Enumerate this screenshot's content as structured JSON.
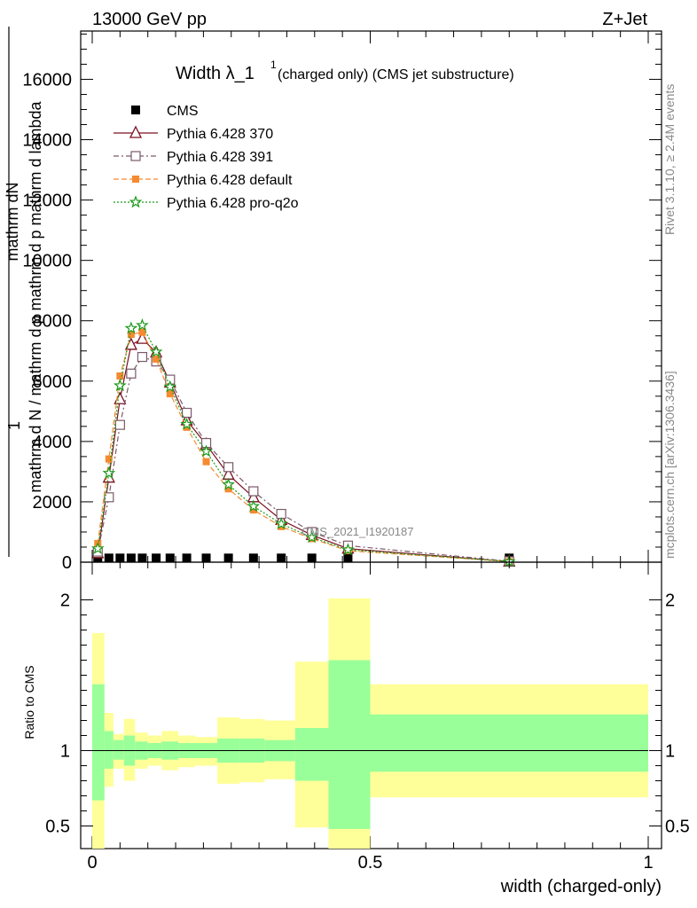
{
  "header": {
    "left": "13000 GeV pp",
    "right": "Z+Jet",
    "title": "Width λ_1",
    "title_sup": "1",
    "title_suffix": "(charged only) (CMS jet substructure)",
    "ref_label": "CMS_2021_I1920187"
  },
  "side_labels": {
    "rivet": "Rivet 3.1.10, ≥ 2.4M events",
    "mcplots": "mcplots.cern.ch [arXiv:1306.3436]"
  },
  "colors": {
    "cms": "#000000",
    "p370": "#7b1020",
    "p391": "#7a5a6a",
    "pdefault": "#f58a30",
    "pq2o": "#1a9a1a",
    "band_stat": "#99ff99",
    "band_tot": "#ffff99"
  },
  "chart_data": [
    {
      "type": "line",
      "ylabel_top": "mathrm dN",
      "ylabel_mid": "1",
      "ylabel_bottom": "mathrm d N / mathrm d p mathrm d p mathrm d lambda",
      "ylim": [
        0,
        17600
      ],
      "xlim": [
        -0.02,
        1.02
      ],
      "yticks": [
        0,
        2000,
        4000,
        6000,
        8000,
        10000,
        12000,
        14000,
        16000
      ],
      "x": [
        0.01,
        0.03,
        0.05,
        0.07,
        0.09,
        0.115,
        0.14,
        0.17,
        0.205,
        0.245,
        0.29,
        0.34,
        0.395,
        0.46,
        0.75
      ],
      "series": [
        {
          "name": "CMS",
          "key": "cms",
          "marker": "square",
          "values": [
            20,
            20,
            20,
            20,
            20,
            20,
            20,
            20,
            20,
            20,
            20,
            20,
            20,
            20,
            20
          ]
        },
        {
          "name": "Pythia 6.428 370",
          "key": "p370",
          "marker": "triangle",
          "dash": "",
          "values": [
            300,
            2800,
            5400,
            7200,
            7400,
            6950,
            5950,
            4700,
            3900,
            2900,
            2150,
            1400,
            900,
            450,
            20
          ]
        },
        {
          "name": "Pythia 6.428 391",
          "key": "p391",
          "marker": "opensquare",
          "dash": "6,3,2,3",
          "values": [
            350,
            2150,
            4550,
            6250,
            6800,
            6650,
            6050,
            4950,
            3950,
            3150,
            2350,
            1600,
            1000,
            550,
            30
          ]
        },
        {
          "name": "Pythia 6.428 default",
          "key": "pdefault",
          "marker": "filledsquare",
          "dash": "6,3",
          "values": [
            620,
            3420,
            6170,
            7550,
            7620,
            6730,
            5580,
            4470,
            3330,
            2430,
            1730,
            1180,
            780,
            380,
            20
          ]
        },
        {
          "name": "Pythia 6.428 pro-q2o",
          "key": "pq2o",
          "marker": "star",
          "dash": "2,2",
          "values": [
            450,
            2950,
            5850,
            7750,
            7850,
            6970,
            5810,
            4570,
            3670,
            2570,
            1850,
            1270,
            820,
            410,
            20
          ]
        }
      ]
    },
    {
      "type": "area",
      "ylabel": "Ratio to CMS",
      "xlabel": "width (charged-only)",
      "ylim": [
        0.35,
        2.25
      ],
      "yticks": [
        0.5,
        1,
        2
      ],
      "ytick_labels": [
        "0.5",
        "1",
        "2"
      ],
      "xticks": [
        0,
        0.5,
        1
      ],
      "xtick_labels": [
        "0",
        "0.5",
        "1"
      ],
      "bins": [
        {
          "x0": 0.0,
          "x1": 0.022,
          "stat": [
            0.67,
            1.44
          ],
          "tot": [
            0.35,
            1.78
          ]
        },
        {
          "x0": 0.022,
          "x1": 0.038,
          "stat": [
            0.88,
            1.13
          ],
          "tot": [
            0.76,
            1.25
          ]
        },
        {
          "x0": 0.038,
          "x1": 0.057,
          "stat": [
            0.94,
            1.07
          ],
          "tot": [
            0.88,
            1.11
          ]
        },
        {
          "x0": 0.057,
          "x1": 0.077,
          "stat": [
            0.9,
            1.1
          ],
          "tot": [
            0.8,
            1.21
          ]
        },
        {
          "x0": 0.077,
          "x1": 0.1,
          "stat": [
            0.94,
            1.06
          ],
          "tot": [
            0.88,
            1.12
          ]
        },
        {
          "x0": 0.1,
          "x1": 0.125,
          "stat": [
            0.95,
            1.05
          ],
          "tot": [
            0.9,
            1.1
          ]
        },
        {
          "x0": 0.125,
          "x1": 0.155,
          "stat": [
            0.94,
            1.06
          ],
          "tot": [
            0.87,
            1.13
          ]
        },
        {
          "x0": 0.155,
          "x1": 0.185,
          "stat": [
            0.95,
            1.05
          ],
          "tot": [
            0.89,
            1.1
          ]
        },
        {
          "x0": 0.185,
          "x1": 0.225,
          "stat": [
            0.95,
            1.05
          ],
          "tot": [
            0.9,
            1.09
          ]
        },
        {
          "x0": 0.225,
          "x1": 0.265,
          "stat": [
            0.92,
            1.08
          ],
          "tot": [
            0.78,
            1.22
          ]
        },
        {
          "x0": 0.265,
          "x1": 0.31,
          "stat": [
            0.92,
            1.08
          ],
          "tot": [
            0.79,
            1.21
          ]
        },
        {
          "x0": 0.31,
          "x1": 0.365,
          "stat": [
            0.93,
            1.07
          ],
          "tot": [
            0.81,
            1.2
          ]
        },
        {
          "x0": 0.365,
          "x1": 0.425,
          "stat": [
            0.8,
            1.15
          ],
          "tot": [
            0.49,
            1.59
          ]
        },
        {
          "x0": 0.425,
          "x1": 0.5,
          "stat": [
            0.48,
            1.6
          ],
          "tot": [
            0.35,
            2.01
          ]
        },
        {
          "x0": 0.5,
          "x1": 1.0,
          "stat": [
            0.86,
            1.24
          ],
          "tot": [
            0.69,
            1.44
          ]
        }
      ]
    }
  ]
}
